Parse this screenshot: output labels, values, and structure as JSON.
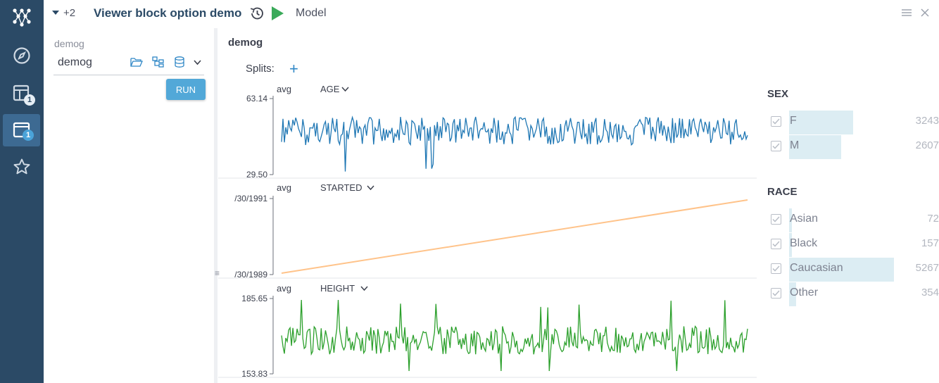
{
  "header": {
    "more_count": "+2",
    "title": "Viewer block option demo",
    "model_label": "Model"
  },
  "query": {
    "caption": "demog",
    "value": "demog",
    "run_label": "RUN"
  },
  "rail": {
    "badges": [
      "1",
      "1"
    ]
  },
  "viewer": {
    "title": "demog",
    "splits_label": "Splits:",
    "add_label": "+"
  },
  "chart_data": {
    "type": "line",
    "aggregation": "avg",
    "panels": [
      {
        "column": "AGE",
        "agg": "avg",
        "y_max_label": "63.14",
        "y_min_label": "29.50",
        "ylim": [
          29.5,
          63.14
        ],
        "color": "#1f77b4",
        "note": "noisy series oscillating roughly between 34 and 55 with a few spikes"
      },
      {
        "column": "STARTED",
        "agg": "avg",
        "y_max_label": "/30/1991",
        "y_min_label": "/30/1989",
        "color": "#ffc38a",
        "note": "monotonic increasing straight line"
      },
      {
        "column": "HEIGHT",
        "agg": "avg",
        "y_max_label": "185.65",
        "y_min_label": "153.83",
        "ylim": [
          153.83,
          185.65
        ],
        "color": "#2ca02c",
        "note": "noisy series oscillating roughly between 162 and 178 with a few spikes"
      }
    ]
  },
  "filters": [
    {
      "title": "SEX",
      "items": [
        {
          "label": "F",
          "count": "3243",
          "checked": true
        },
        {
          "label": "M",
          "count": "2607",
          "checked": true
        }
      ]
    },
    {
      "title": "RACE",
      "items": [
        {
          "label": "Asian",
          "count": "72",
          "checked": true
        },
        {
          "label": "Black",
          "count": "157",
          "checked": true
        },
        {
          "label": "Caucasian",
          "count": "5267",
          "checked": true
        },
        {
          "label": "Other",
          "count": "354",
          "checked": true
        }
      ]
    }
  ],
  "colors": {
    "rail": "#2b4a66",
    "accent": "#2f87c6",
    "run": "#52a8d8",
    "play": "#3aaa5a"
  }
}
